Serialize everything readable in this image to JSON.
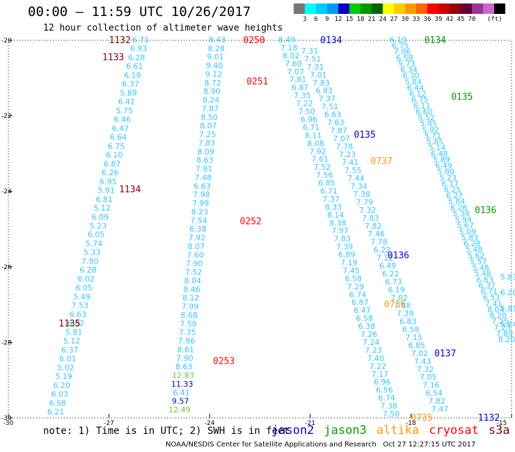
{
  "header": {
    "title": "00:00 – 11:59 UTC 10/26/2017",
    "subtitle": "12 hour collection of altimeter wave heights"
  },
  "color_scale": {
    "colors": [
      "#777777",
      "#00ffff",
      "#00ccff",
      "#0099ff",
      "#0000cc",
      "#00cc00",
      "#009900",
      "#006600",
      "#ffff00",
      "#ffcc00",
      "#ff9900",
      "#ff6600",
      "#ff0000",
      "#cc0000",
      "#990000",
      "#660033",
      "#993399",
      "#cc66cc",
      "#000000"
    ],
    "labels": [
      "3",
      "6",
      "9",
      "12",
      "15",
      "18",
      "21",
      "24",
      "27",
      "30",
      "33",
      "36",
      "39",
      "42",
      "45",
      "70"
    ],
    "unit": "(ft)"
  },
  "axes": {
    "x_ticks": [
      "-30",
      "-27",
      "-24",
      "-21",
      "-18",
      "-15"
    ],
    "y_ticks": [
      "-20",
      "-22",
      "-24",
      "-26",
      "-28",
      "-30"
    ]
  },
  "satellite_colors": {
    "jason2": "#0000cc",
    "jason3": "#009900",
    "altika": "#ff9900",
    "cryosat": "#ff0000",
    "s3a": "#800000",
    "wave": "#33c4ff"
  },
  "passes": [
    {
      "text": "1132",
      "x": -27.0,
      "y": -20.0,
      "sat": "s3a"
    },
    {
      "text": "1133",
      "x": -27.2,
      "y": -20.45,
      "sat": "s3a"
    },
    {
      "text": "0250",
      "x": -23.0,
      "y": -20.0,
      "sat": "cryosat"
    },
    {
      "text": "0251",
      "x": -22.9,
      "y": -21.1,
      "sat": "cryosat"
    },
    {
      "text": "0134",
      "x": -20.7,
      "y": -20.0,
      "sat": "jason2"
    },
    {
      "text": "0134",
      "x": -17.6,
      "y": -20.0,
      "sat": "jason3"
    },
    {
      "text": "0135",
      "x": -16.8,
      "y": -21.5,
      "sat": "jason3"
    },
    {
      "text": "0135",
      "x": -19.7,
      "y": -22.5,
      "sat": "jason2"
    },
    {
      "text": "0737",
      "x": -19.2,
      "y": -23.2,
      "sat": "altika"
    },
    {
      "text": "1134",
      "x": -26.7,
      "y": -23.95,
      "sat": "s3a"
    },
    {
      "text": "0136",
      "x": -16.1,
      "y": -24.5,
      "sat": "jason3"
    },
    {
      "text": "0252",
      "x": -23.1,
      "y": -24.8,
      "sat": "cryosat"
    },
    {
      "text": "0136",
      "x": -18.7,
      "y": -25.7,
      "sat": "jason2"
    },
    {
      "text": "0736",
      "x": -18.8,
      "y": -27.0,
      "sat": "altika"
    },
    {
      "text": "1135",
      "x": -28.5,
      "y": -27.5,
      "sat": "s3a"
    },
    {
      "text": "0137",
      "x": -17.3,
      "y": -28.3,
      "sat": "jason2"
    },
    {
      "text": "0253",
      "x": -23.9,
      "y": -28.5,
      "sat": "cryosat"
    },
    {
      "text": "0735",
      "x": -18.0,
      "y": -30.0,
      "sat": "altika"
    },
    {
      "text": "1132",
      "x": -16.0,
      "y": -30.0,
      "sat": "jason2"
    }
  ],
  "track_a": {
    "values": [
      "6.71",
      "6.93",
      "6.28",
      "6.61",
      "6.18",
      "6.37",
      "5.89",
      "6.42",
      "5.75",
      "6.46",
      "6.47",
      "6.64",
      "6.75",
      "6.10",
      "6.87",
      "6.26",
      "6.95",
      "5.91",
      "6.81",
      "5.12",
      "6.09",
      "5.23",
      "6.05",
      "5.74",
      "5.33",
      "7.80",
      "6.28",
      "6.02",
      "6.05",
      "5.49",
      "7.53",
      "6.63",
      "6.82",
      "5.81",
      "5.12",
      "6.37",
      "6.01",
      "5.02",
      "5.19",
      "6.20",
      "6.03",
      "6.58",
      "6.21"
    ]
  },
  "track_b": {
    "values": [
      "8.43",
      "8.28",
      "9.01",
      "9.40",
      "9.12",
      "8.72",
      "8.90",
      "8.24",
      "7.87",
      "8.50",
      "8.07",
      "7.25",
      "7.83",
      "8.09",
      "8.63",
      "7.81",
      "7.48",
      "6.63",
      "7.98",
      "7.99",
      "8.23",
      "7.54",
      "6.38",
      "7.92",
      "8.07",
      "7.60",
      "7.90",
      "7.52",
      "8.04",
      "8.46",
      "8.12",
      "7.99",
      "8.68",
      "7.50",
      "7.35",
      "7.96",
      "8.61",
      "7.90",
      "8.63",
      "12.83",
      "11.33",
      "6.41",
      "9.57",
      "12.49"
    ],
    "colors": {
      "39": "#66cc33",
      "40": "#0000cc",
      "42": "#0000cc",
      "43": "#66cc33"
    }
  },
  "track_c": {
    "values": [
      "8.49",
      "7.18",
      "8.02",
      "7.60",
      "7.07",
      "7.81",
      "6.87",
      "7.35",
      "7.22",
      "7.50",
      "6.96",
      "6.71",
      "8.11",
      "8.08",
      "7.92",
      "7.61",
      "7.52",
      "7.56",
      "6.85",
      "6.71",
      "7.37",
      "8.33",
      "8.14",
      "8.38",
      "7.97",
      "7.83",
      "7.39",
      "6.89",
      "7.19",
      "7.45",
      "6.58",
      "7.29",
      "6.74",
      "6.87",
      "6.47",
      "6.58",
      "6.38",
      "7.26",
      "7.24",
      "7.23",
      "7.40",
      "7.22",
      "7.17",
      "6.96",
      "6.56",
      "6.74",
      "7.38",
      "7.50"
    ]
  },
  "track_d": {
    "values": [
      "7.31",
      "7.51",
      "7.31",
      "7.01",
      "7.83",
      "6.83",
      "7.37",
      "7.51",
      "6.63",
      "7.63",
      "7.87",
      "7.07",
      "7.78",
      "7.23",
      "7.41",
      "7.55",
      "7.44",
      "7.34",
      "7.38",
      "7.79",
      "7.32",
      "7.83",
      "7.82",
      "7.46",
      "7.78",
      "6.22",
      "7.12",
      "6.49",
      "6.22",
      "6.73",
      "6.19",
      "7.02",
      "7.88",
      "7.39",
      "6.83",
      "6.58",
      "7.15",
      "6.85",
      "7.02",
      "7.43",
      "7.32",
      "7.05",
      "7.16",
      "6.54",
      "7.82",
      "7.47"
    ]
  },
  "track_e": {
    "values": [
      "6.19",
      "6.75",
      "7.06",
      "6.58",
      "5.73",
      "6.34",
      "6.30",
      "5.84",
      "6.44",
      "6.12",
      "6.75",
      "6.11",
      "6.60",
      "5.52",
      "5.85",
      "5.92",
      "5.71",
      "5.85",
      "5.14",
      "6.48",
      "5.89",
      "6.49",
      "5.80",
      "5.23",
      "6.17",
      "6.25",
      "6.27",
      "5.84",
      "6.26",
      "5.38",
      "5.94",
      "5.67",
      "5.09",
      "5.83",
      "6.28",
      "5.48",
      "5.62",
      "5.57",
      "5.48",
      "5.48",
      "6.63",
      "6.37",
      "6.71",
      "6.53",
      "7.41",
      "8.04",
      "8.20",
      "7.25",
      "7.23",
      "7.89",
      "8.20"
    ]
  },
  "track_f": {
    "values": [
      "5.83",
      "6.20",
      "5.81",
      "5.64"
    ]
  },
  "footer": {
    "note": "note: 1) Time is in UTC; 2) SWH is in feet",
    "legend": [
      {
        "label": "jason2",
        "color": "#0000cc"
      },
      {
        "label": "jason3",
        "color": "#009900"
      },
      {
        "label": "altika",
        "color": "#ff9900"
      },
      {
        "label": "cryosat",
        "color": "#ff0000"
      },
      {
        "label": "s3a",
        "color": "#800000"
      }
    ],
    "credit": "NOAA/NESDIS Center for Satellite Applications and Research",
    "timestamp": "Oct 27 12:27:15 UTC 2017"
  }
}
